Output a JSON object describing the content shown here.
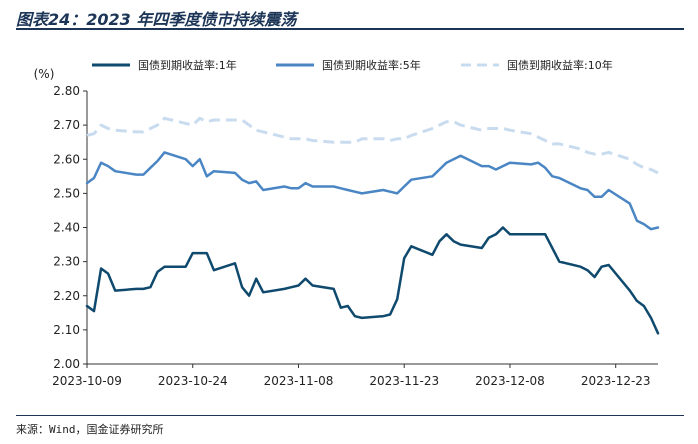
{
  "header": {
    "title": "图表24：2023 年四季度债市持续震荡"
  },
  "footer": {
    "source": "来源：Wind，国金证券研究所"
  },
  "chart_data": {
    "type": "line",
    "ylabel": "(%)",
    "ylim": [
      2.0,
      2.8
    ],
    "yticks": [
      "2.00",
      "2.10",
      "2.20",
      "2.30",
      "2.40",
      "2.50",
      "2.60",
      "2.70",
      "2.80"
    ],
    "xtick_labels": [
      "2023-10-09",
      "2023-10-24",
      "2023-11-08",
      "2023-11-23",
      "2023-12-08",
      "2023-12-23"
    ],
    "grid": false,
    "legend_position": "top",
    "x": [
      "2023-10-09",
      "2023-10-10",
      "2023-10-11",
      "2023-10-12",
      "2023-10-13",
      "2023-10-16",
      "2023-10-17",
      "2023-10-18",
      "2023-10-19",
      "2023-10-20",
      "2023-10-23",
      "2023-10-24",
      "2023-10-25",
      "2023-10-26",
      "2023-10-27",
      "2023-10-30",
      "2023-10-31",
      "2023-11-01",
      "2023-11-02",
      "2023-11-03",
      "2023-11-06",
      "2023-11-07",
      "2023-11-08",
      "2023-11-09",
      "2023-11-10",
      "2023-11-13",
      "2023-11-14",
      "2023-11-15",
      "2023-11-16",
      "2023-11-17",
      "2023-11-20",
      "2023-11-21",
      "2023-11-22",
      "2023-11-23",
      "2023-11-24",
      "2023-11-27",
      "2023-11-28",
      "2023-11-29",
      "2023-11-30",
      "2023-12-01",
      "2023-12-04",
      "2023-12-05",
      "2023-12-06",
      "2023-12-07",
      "2023-12-08",
      "2023-12-11",
      "2023-12-12",
      "2023-12-13",
      "2023-12-14",
      "2023-12-15",
      "2023-12-18",
      "2023-12-19",
      "2023-12-20",
      "2023-12-21",
      "2023-12-22",
      "2023-12-25",
      "2023-12-26",
      "2023-12-27",
      "2023-12-28",
      "2023-12-29"
    ],
    "series": [
      {
        "name": "国债到期收益率:1年",
        "color": "#0f4a6e",
        "dashed": false,
        "values": [
          2.17,
          2.155,
          2.28,
          2.265,
          2.215,
          2.22,
          2.22,
          2.225,
          2.27,
          2.285,
          2.285,
          2.325,
          2.325,
          2.325,
          2.275,
          2.295,
          2.225,
          2.2,
          2.25,
          2.21,
          2.22,
          2.225,
          2.23,
          2.25,
          2.23,
          2.22,
          2.165,
          2.17,
          2.14,
          2.135,
          2.14,
          2.145,
          2.19,
          2.31,
          2.345,
          2.32,
          2.36,
          2.38,
          2.36,
          2.35,
          2.34,
          2.37,
          2.38,
          2.4,
          2.38,
          2.38,
          2.38,
          2.38,
          2.34,
          2.3,
          2.285,
          2.275,
          2.255,
          2.285,
          2.29,
          2.215,
          2.185,
          2.17,
          2.135,
          2.09
        ]
      },
      {
        "name": "国债到期收益率:5年",
        "color": "#4b86c4",
        "dashed": false,
        "values": [
          2.53,
          2.545,
          2.59,
          2.58,
          2.565,
          2.555,
          2.555,
          2.575,
          2.595,
          2.62,
          2.6,
          2.58,
          2.6,
          2.55,
          2.565,
          2.56,
          2.54,
          2.53,
          2.535,
          2.51,
          2.52,
          2.515,
          2.515,
          2.53,
          2.52,
          2.52,
          2.515,
          2.51,
          2.505,
          2.5,
          2.51,
          2.505,
          2.5,
          2.52,
          2.54,
          2.55,
          2.57,
          2.59,
          2.6,
          2.61,
          2.58,
          2.58,
          2.57,
          2.58,
          2.59,
          2.585,
          2.59,
          2.575,
          2.55,
          2.545,
          2.515,
          2.51,
          2.49,
          2.49,
          2.51,
          2.47,
          2.42,
          2.41,
          2.395,
          2.4
        ]
      },
      {
        "name": "国债到期收益率:10年",
        "color": "#c9dcef",
        "dashed": true,
        "values": [
          2.67,
          2.675,
          2.7,
          2.69,
          2.685,
          2.68,
          2.68,
          2.69,
          2.7,
          2.72,
          2.705,
          2.7,
          2.72,
          2.71,
          2.715,
          2.715,
          2.715,
          2.7,
          2.685,
          2.68,
          2.665,
          2.66,
          2.66,
          2.66,
          2.655,
          2.65,
          2.65,
          2.65,
          2.65,
          2.66,
          2.66,
          2.655,
          2.66,
          2.66,
          2.67,
          2.69,
          2.7,
          2.71,
          2.71,
          2.7,
          2.685,
          2.69,
          2.69,
          2.69,
          2.685,
          2.675,
          2.665,
          2.655,
          2.645,
          2.645,
          2.63,
          2.62,
          2.615,
          2.615,
          2.62,
          2.6,
          2.585,
          2.575,
          2.57,
          2.56
        ]
      }
    ]
  }
}
